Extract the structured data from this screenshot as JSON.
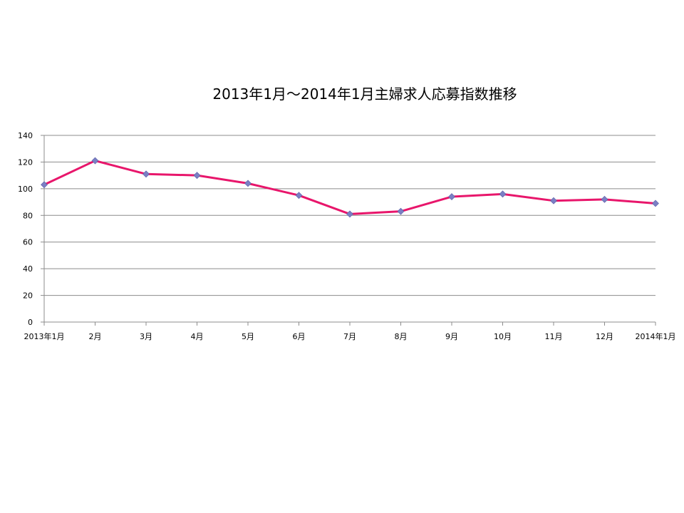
{
  "chart_data": {
    "type": "line",
    "title": "2013年1月～2014年1月主婦求人応募指数推移",
    "xlabel": "",
    "ylabel": "",
    "categories": [
      "2013年1月",
      "2月",
      "3月",
      "4月",
      "5月",
      "6月",
      "7月",
      "8月",
      "9月",
      "10月",
      "11月",
      "12月",
      "2014年1月"
    ],
    "series": [
      {
        "values": [
          103,
          121,
          111,
          110,
          104,
          95,
          81,
          83,
          94,
          96,
          91,
          92,
          89
        ]
      }
    ],
    "ylim": [
      0,
      140
    ],
    "yticks": [
      0,
      20,
      40,
      60,
      80,
      100,
      120,
      140
    ],
    "grid": true,
    "legend": "none",
    "colors": {
      "line": "#e8166b",
      "marker": "#7b7fc4",
      "grid": "#8c8c8c",
      "axis": "#8c8c8c"
    }
  }
}
